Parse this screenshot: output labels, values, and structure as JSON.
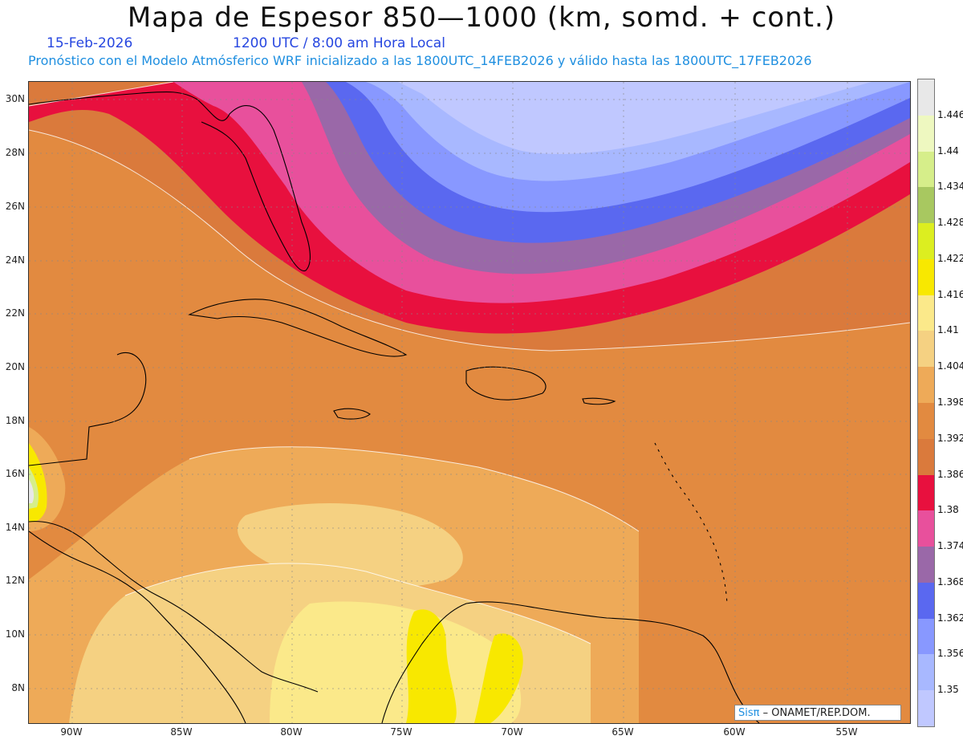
{
  "title": "Mapa de Espesor 850—1000 (km, somd. + cont.)",
  "date": "15-Feb-2026",
  "time": "1200 UTC / 8:00 am Hora Local",
  "subtitle": "Pronóstico con el Modelo Atmósferico WRF inicializado a las 1800UTC_14FEB2026 y válido hasta las  1800UTC_17FEB2026",
  "lat_labels": [
    "30N",
    "28N",
    "26N",
    "24N",
    "22N",
    "20N",
    "18N",
    "16N",
    "14N",
    "12N",
    "10N",
    "8N"
  ],
  "lon_labels": [
    "90W",
    "85W",
    "80W",
    "75W",
    "70W",
    "65W",
    "60W",
    "55W"
  ],
  "colorbar": {
    "levels": [
      "1.446",
      "1.44",
      "1.434",
      "1.428",
      "1.422",
      "1.416",
      "1.41",
      "1.404",
      "1.398",
      "1.392",
      "1.386",
      "1.38",
      "1.374",
      "1.368",
      "1.362",
      "1.356",
      "1.35"
    ],
    "colors": [
      "#e8e8e8",
      "#eef8c0",
      "#d6ee8a",
      "#a8c860",
      "#dcee20",
      "#f8e800",
      "#fbe98a",
      "#f5d182",
      "#eeaa58",
      "#e28a40",
      "#da7a3c",
      "#e8103e",
      "#e8509c",
      "#9a68a8",
      "#5a68f0",
      "#8898ff",
      "#a8b8ff",
      "#c0c8ff"
    ]
  },
  "credit": {
    "brand": "Sisπ",
    "org": "– ONAMET/REP.DOM."
  }
}
